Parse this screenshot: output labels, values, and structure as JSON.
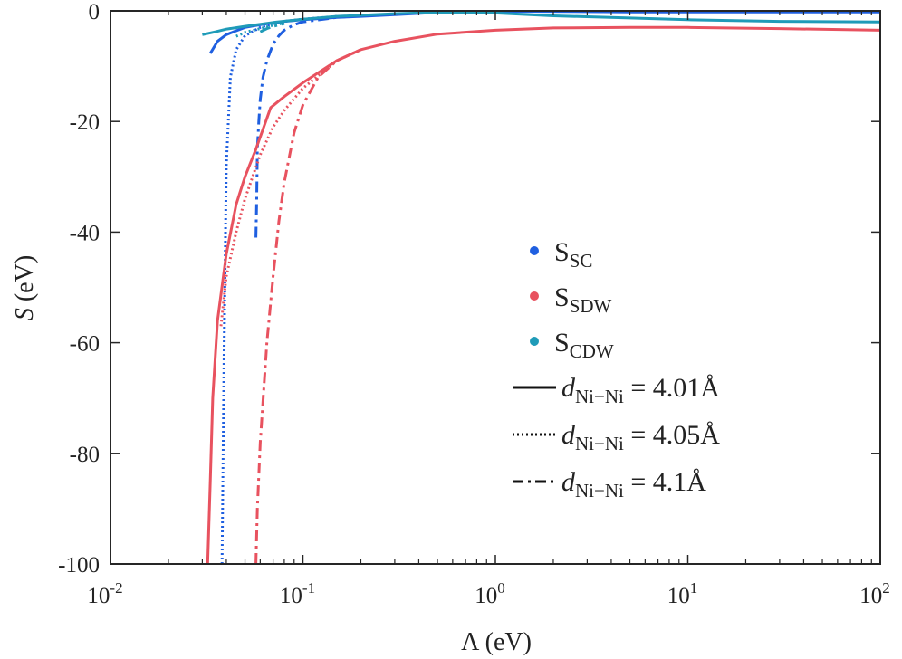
{
  "chart_data": {
    "type": "line",
    "x_scale": "log",
    "xlabel_symbol": "Λ",
    "xlabel_unit": "(eV)",
    "ylabel_symbol": "S",
    "ylabel_unit": "(eV)",
    "xlim": [
      0.01,
      100
    ],
    "ylim": [
      -100,
      0
    ],
    "x_tick_labels": [
      {
        "base": "10",
        "exp": "-2",
        "value": 0.01
      },
      {
        "base": "10",
        "exp": "-1",
        "value": 0.1
      },
      {
        "base": "10",
        "exp": "0",
        "value": 1
      },
      {
        "base": "10",
        "exp": "1",
        "value": 10
      },
      {
        "base": "10",
        "exp": "2",
        "value": 100
      }
    ],
    "y_ticks": [
      0,
      -20,
      -40,
      -60,
      -80,
      -100
    ],
    "y_tick_labels": [
      "0",
      "-20",
      "-40",
      "-60",
      "-80",
      "-100"
    ],
    "colors": {
      "SC": "#1f5fe0",
      "SDW": "#e8525f",
      "CDW": "#1f9bb8"
    },
    "legend": {
      "placement": "right-center",
      "markers": [
        {
          "main": "S",
          "sub": "SC",
          "color_key": "SC"
        },
        {
          "main": "S",
          "sub": "SDW",
          "color_key": "SDW"
        },
        {
          "main": "S",
          "sub": "CDW",
          "color_key": "CDW"
        }
      ],
      "styles": [
        {
          "var": "d",
          "sub": "Ni−Ni",
          "rest": " = 4.01Å",
          "dash": "solid"
        },
        {
          "var": "d",
          "sub": "Ni−Ni",
          "rest": " = 4.05Å",
          "dash": "dotted"
        },
        {
          "var": "d",
          "sub": "Ni−Ni",
          "rest": " = 4.1Å",
          "dash": "dashdot"
        }
      ]
    },
    "series": [
      {
        "name": "S_SC, d = 4.01Å",
        "color_key": "SC",
        "dash": "solid",
        "x": [
          0.033,
          0.036,
          0.04,
          0.045,
          0.05,
          0.06,
          0.07,
          0.08,
          0.1,
          0.15,
          0.2,
          0.3,
          0.5,
          0.7,
          1,
          2,
          5,
          10,
          30,
          100
        ],
        "y": [
          -7.7,
          -5.5,
          -4.3,
          -3.6,
          -3.0,
          -2.5,
          -2.2,
          -1.9,
          -1.6,
          -1.2,
          -1.0,
          -0.7,
          -0.3,
          -0.2,
          -0.1,
          -0.1,
          -0.2,
          -0.2,
          -0.2,
          -0.2
        ]
      },
      {
        "name": "S_SC, d = 4.05Å",
        "color_key": "SC",
        "dash": "dotted",
        "x": [
          0.038,
          0.039,
          0.04,
          0.042,
          0.045,
          0.05,
          0.06,
          0.07,
          0.08,
          0.1,
          0.15
        ],
        "y": [
          -100,
          -60,
          -28,
          -12,
          -7,
          -4.5,
          -3,
          -2.3,
          -1.9,
          -1.5,
          -1.0
        ]
      },
      {
        "name": "S_SC, d = 4.1Å",
        "color_key": "SC",
        "dash": "dashdot",
        "x": [
          0.057,
          0.0575,
          0.058,
          0.059,
          0.06,
          0.062,
          0.065,
          0.07,
          0.075,
          0.08,
          0.09,
          0.1,
          0.15
        ],
        "y": [
          -41,
          -35,
          -25,
          -20,
          -16,
          -12,
          -9,
          -6,
          -4.5,
          -3.5,
          -2.5,
          -2.0,
          -1.2
        ]
      },
      {
        "name": "S_SDW, d = 4.01Å",
        "color_key": "SDW",
        "dash": "solid",
        "x": [
          0.032,
          0.033,
          0.034,
          0.036,
          0.04,
          0.045,
          0.05,
          0.057,
          0.068,
          0.08,
          0.1,
          0.15,
          0.2,
          0.3,
          0.5,
          1,
          2,
          5,
          10,
          30,
          100
        ],
        "y": [
          -100,
          -85,
          -70,
          -56,
          -44,
          -35,
          -30,
          -25,
          -17.5,
          -15.5,
          -13,
          -9,
          -7,
          -5.5,
          -4.2,
          -3.5,
          -3.1,
          -3.0,
          -3.0,
          -3.2,
          -3.5
        ]
      },
      {
        "name": "S_SDW, d = 4.05Å",
        "color_key": "SDW",
        "dash": "dotted",
        "x": [
          0.0375,
          0.04,
          0.045,
          0.05,
          0.06,
          0.07,
          0.08,
          0.1,
          0.15,
          0.2
        ],
        "y": [
          -57,
          -48,
          -40,
          -34,
          -26,
          -21,
          -18,
          -14,
          -9,
          -7
        ]
      },
      {
        "name": "S_SDW, d = 4.1Å",
        "color_key": "SDW",
        "dash": "dashdot",
        "x": [
          0.057,
          0.058,
          0.06,
          0.065,
          0.07,
          0.075,
          0.08,
          0.09,
          0.1,
          0.12,
          0.15,
          0.2
        ],
        "y": [
          -100,
          -90,
          -78,
          -60,
          -48,
          -38,
          -31,
          -22,
          -17,
          -12,
          -9,
          -7
        ]
      },
      {
        "name": "S_CDW, d = 4.01Å",
        "color_key": "CDW",
        "dash": "solid",
        "x": [
          0.03,
          0.035,
          0.04,
          0.05,
          0.07,
          0.1,
          0.15,
          0.2,
          0.3,
          0.5,
          1,
          2,
          5,
          10,
          30,
          100
        ],
        "y": [
          -4.3,
          -3.8,
          -3.3,
          -2.8,
          -2.1,
          -1.5,
          -1.0,
          -0.8,
          -0.5,
          -0.3,
          -0.4,
          -0.9,
          -1.3,
          -1.6,
          -1.9,
          -2.0
        ]
      },
      {
        "name": "S_CDW, d = 4.05Å",
        "color_key": "CDW",
        "dash": "dotted",
        "x": [
          0.045,
          0.05,
          0.06,
          0.07,
          0.08
        ],
        "y": [
          -4.6,
          -3.9,
          -3.2,
          -2.6,
          -2.2
        ]
      },
      {
        "name": "S_CDW, d = 4.1Å",
        "color_key": "CDW",
        "dash": "dashdot",
        "x": [
          0.06,
          0.065,
          0.07,
          0.08
        ],
        "y": [
          -3.8,
          -3.2,
          -2.8,
          -2.3
        ]
      }
    ]
  }
}
